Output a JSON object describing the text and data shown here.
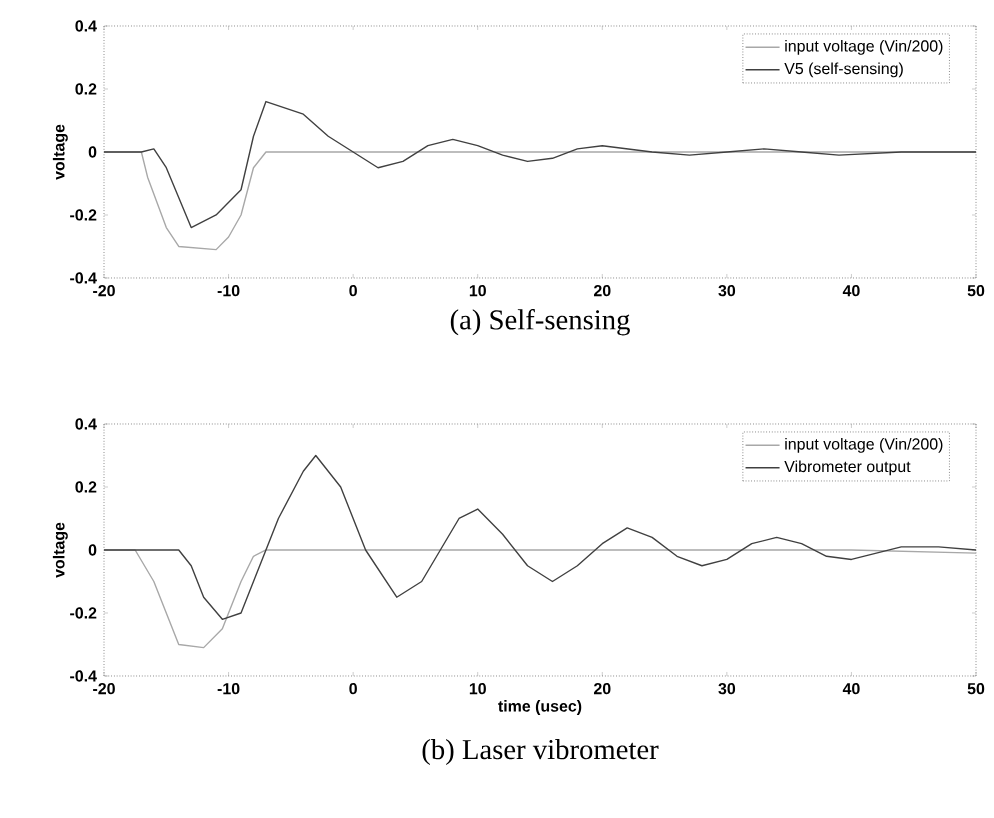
{
  "chart_data": [
    {
      "type": "line",
      "title": "(a) Self-sensing",
      "ylabel": "voltage",
      "xlim": [
        -20,
        50
      ],
      "ylim": [
        -0.4,
        0.4
      ],
      "xticks": [
        -20,
        -10,
        0,
        10,
        20,
        30,
        40,
        50
      ],
      "yticks": [
        -0.4,
        -0.2,
        0,
        0.2,
        0.4
      ],
      "legend": "top right",
      "series": [
        {
          "name": "input voltage (Vin/200)",
          "color": "#a8a8a8",
          "x": [
            -20,
            -17,
            -16.5,
            -15,
            -14,
            -11,
            -10,
            -9,
            -8,
            -7,
            -4,
            0,
            10,
            20,
            30,
            40,
            50
          ],
          "values": [
            0,
            0,
            -0.08,
            -0.24,
            -0.3,
            -0.31,
            -0.27,
            -0.2,
            -0.05,
            0,
            0,
            0,
            0,
            0,
            0,
            0,
            0
          ]
        },
        {
          "name": "V5 (self-sensing)",
          "color": "#404040",
          "x": [
            -20,
            -17,
            -16,
            -15,
            -13,
            -11,
            -9,
            -8,
            -7,
            -4,
            -2,
            0,
            2,
            4,
            6,
            8,
            10,
            12,
            14,
            16,
            18,
            20,
            22,
            24,
            27,
            30,
            33,
            36,
            39,
            44,
            50
          ],
          "values": [
            0,
            0,
            0.01,
            -0.05,
            -0.24,
            -0.2,
            -0.12,
            0.05,
            0.16,
            0.12,
            0.05,
            0,
            -0.05,
            -0.03,
            0.02,
            0.04,
            0.02,
            -0.01,
            -0.03,
            -0.02,
            0.01,
            0.02,
            0.01,
            0,
            -0.01,
            0,
            0.01,
            0,
            -0.01,
            0,
            0
          ]
        }
      ]
    },
    {
      "type": "line",
      "title": "(b) Laser vibrometer",
      "xlabel": "time (usec)",
      "ylabel": "voltage",
      "xlim": [
        -20,
        50
      ],
      "ylim": [
        -0.4,
        0.4
      ],
      "xticks": [
        -20,
        -10,
        0,
        10,
        20,
        30,
        40,
        50
      ],
      "yticks": [
        -0.4,
        -0.2,
        0,
        0.2,
        0.4
      ],
      "legend": "top right",
      "series": [
        {
          "name": "input voltage (Vin/200)",
          "color": "#a8a8a8",
          "x": [
            -20,
            -17.5,
            -16,
            -14,
            -12,
            -10.5,
            -9,
            -8,
            -7,
            0,
            10,
            20,
            30,
            40,
            50
          ],
          "values": [
            0,
            0,
            -0.1,
            -0.3,
            -0.31,
            -0.25,
            -0.1,
            -0.02,
            0,
            0,
            0,
            0,
            0,
            0,
            -0.01
          ]
        },
        {
          "name": "Vibrometer output",
          "color": "#404040",
          "x": [
            -20,
            -14,
            -13,
            -12,
            -10.5,
            -9,
            -7.5,
            -6,
            -4,
            -3,
            -1,
            1,
            3.5,
            5.5,
            7,
            8.5,
            10,
            12,
            14,
            16,
            18,
            20,
            22,
            24,
            26,
            28,
            30,
            32,
            34,
            36,
            38,
            40,
            42,
            44,
            47,
            50
          ],
          "values": [
            0,
            0,
            -0.05,
            -0.15,
            -0.22,
            -0.2,
            -0.05,
            0.1,
            0.25,
            0.3,
            0.2,
            0,
            -0.15,
            -0.1,
            0,
            0.1,
            0.13,
            0.05,
            -0.05,
            -0.1,
            -0.05,
            0.02,
            0.07,
            0.04,
            -0.02,
            -0.05,
            -0.03,
            0.02,
            0.04,
            0.02,
            -0.02,
            -0.03,
            -0.01,
            0.01,
            0.01,
            0
          ]
        }
      ]
    }
  ]
}
